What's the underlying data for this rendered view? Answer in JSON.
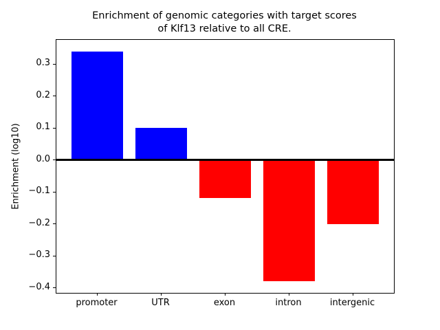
{
  "figure": {
    "background_color": "#ffffff",
    "axes_edge_color": "#000000"
  },
  "chart_data": {
    "type": "bar",
    "title": "Enrichment of genomic categories with target scores\nof Klf13 relative to all CRE.",
    "title_lines": [
      "Enrichment of genomic categories with target scores",
      "of Klf13 relative to all CRE."
    ],
    "xlabel": "",
    "ylabel": "Enrichment (log10)",
    "categories": [
      "promoter",
      "UTR",
      "exon",
      "intron",
      "intergenic"
    ],
    "values": [
      0.34,
      0.1,
      -0.12,
      -0.38,
      -0.2
    ],
    "positive_color": "#0000ff",
    "negative_color": "#ff0000",
    "bar_colors": [
      "#0000ff",
      "#0000ff",
      "#ff0000",
      "#ff0000",
      "#ff0000"
    ],
    "bar_width_fraction": 0.8,
    "ylim": [
      -0.416,
      0.376
    ],
    "xlim": [
      -0.64,
      4.64
    ],
    "yticks": [
      0.3,
      0.2,
      0.1,
      0.0,
      -0.1,
      -0.2,
      -0.3,
      -0.4
    ],
    "ytick_labels": [
      "0.3",
      "0.2",
      "0.1",
      "0.0",
      "−0.1",
      "−0.2",
      "−0.3",
      "−0.4"
    ],
    "zero_line": {
      "value": 0.0,
      "color": "#000000"
    },
    "grid": false,
    "legend": null
  }
}
